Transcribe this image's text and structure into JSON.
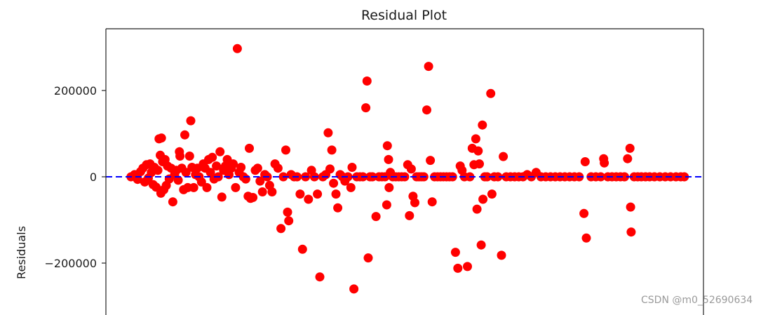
{
  "chart_data": {
    "type": "scatter",
    "title": "Residual Plot",
    "ylabel": "Residuals",
    "xlabel": "",
    "ylim": [
      -320000,
      345000
    ],
    "xlim": [
      0,
      100
    ],
    "y_ticks": [
      {
        "value": 200000,
        "label": "200000"
      },
      {
        "value": 0,
        "label": "0"
      },
      {
        "value": -200000,
        "label": "−200000"
      }
    ],
    "reference_line": {
      "y": 0,
      "style": "dashed",
      "color": "#0000ff"
    },
    "marker_color": "#ff0000",
    "grid": false,
    "points": [
      {
        "x": 4.2,
        "y": 0
      },
      {
        "x": 4.8,
        "y": 5000
      },
      {
        "x": 5.3,
        "y": -6000
      },
      {
        "x": 5.8,
        "y": 12000
      },
      {
        "x": 6.2,
        "y": 20000
      },
      {
        "x": 6.5,
        "y": -12000
      },
      {
        "x": 6.8,
        "y": 28000
      },
      {
        "x": 7.1,
        "y": -3000
      },
      {
        "x": 7.4,
        "y": 30000
      },
      {
        "x": 7.6,
        "y": 10000
      },
      {
        "x": 7.9,
        "y": -18000
      },
      {
        "x": 8.1,
        "y": 22000
      },
      {
        "x": 8.4,
        "y": -24000
      },
      {
        "x": 8.7,
        "y": 15000
      },
      {
        "x": 8.9,
        "y": 88000
      },
      {
        "x": 9.1,
        "y": 50000
      },
      {
        "x": 9.2,
        "y": -38000
      },
      {
        "x": 9.3,
        "y": 90000
      },
      {
        "x": 9.5,
        "y": 35000
      },
      {
        "x": 9.7,
        "y": -30000
      },
      {
        "x": 9.9,
        "y": 40000
      },
      {
        "x": 10.1,
        "y": -20000
      },
      {
        "x": 10.3,
        "y": 25000
      },
      {
        "x": 10.6,
        "y": -5000
      },
      {
        "x": 10.9,
        "y": 20000
      },
      {
        "x": 11.2,
        "y": -58000
      },
      {
        "x": 11.5,
        "y": 5000
      },
      {
        "x": 11.8,
        "y": 15000
      },
      {
        "x": 12.1,
        "y": -8000
      },
      {
        "x": 12.3,
        "y": 58000
      },
      {
        "x": 12.4,
        "y": 48000
      },
      {
        "x": 12.7,
        "y": 20000
      },
      {
        "x": 13.0,
        "y": -30000
      },
      {
        "x": 13.2,
        "y": 97000
      },
      {
        "x": 13.4,
        "y": 10000
      },
      {
        "x": 13.7,
        "y": -25000
      },
      {
        "x": 14.0,
        "y": 48000
      },
      {
        "x": 14.2,
        "y": 130000
      },
      {
        "x": 14.4,
        "y": 22000
      },
      {
        "x": 14.7,
        "y": -25000
      },
      {
        "x": 15.0,
        "y": 5000
      },
      {
        "x": 15.3,
        "y": 20000
      },
      {
        "x": 15.6,
        "y": 0
      },
      {
        "x": 16.0,
        "y": -12000
      },
      {
        "x": 16.3,
        "y": 30000
      },
      {
        "x": 16.6,
        "y": 20000
      },
      {
        "x": 16.9,
        "y": -25000
      },
      {
        "x": 17.2,
        "y": 40000
      },
      {
        "x": 17.5,
        "y": 10000
      },
      {
        "x": 17.8,
        "y": 45000
      },
      {
        "x": 18.1,
        "y": -5000
      },
      {
        "x": 18.5,
        "y": 25000
      },
      {
        "x": 18.8,
        "y": 0
      },
      {
        "x": 19.1,
        "y": 58000
      },
      {
        "x": 19.4,
        "y": -47000
      },
      {
        "x": 19.7,
        "y": 15000
      },
      {
        "x": 20.0,
        "y": 25000
      },
      {
        "x": 20.3,
        "y": 40000
      },
      {
        "x": 20.6,
        "y": 5000
      },
      {
        "x": 21.0,
        "y": 20000
      },
      {
        "x": 21.3,
        "y": 30000
      },
      {
        "x": 21.7,
        "y": -25000
      },
      {
        "x": 22.0,
        "y": 297000
      },
      {
        "x": 22.3,
        "y": 10000
      },
      {
        "x": 22.6,
        "y": 22000
      },
      {
        "x": 23.0,
        "y": 0
      },
      {
        "x": 23.4,
        "y": -5000
      },
      {
        "x": 23.8,
        "y": -45000
      },
      {
        "x": 24.0,
        "y": 66000
      },
      {
        "x": 24.2,
        "y": -50000
      },
      {
        "x": 24.6,
        "y": -48000
      },
      {
        "x": 25.0,
        "y": 15000
      },
      {
        "x": 25.4,
        "y": 20000
      },
      {
        "x": 25.8,
        "y": -10000
      },
      {
        "x": 26.2,
        "y": -35000
      },
      {
        "x": 26.6,
        "y": 5000
      },
      {
        "x": 27.0,
        "y": 0
      },
      {
        "x": 27.4,
        "y": -20000
      },
      {
        "x": 27.8,
        "y": -35000
      },
      {
        "x": 28.3,
        "y": 30000
      },
      {
        "x": 28.8,
        "y": 20000
      },
      {
        "x": 29.3,
        "y": -120000
      },
      {
        "x": 29.7,
        "y": 0
      },
      {
        "x": 30.1,
        "y": 62000
      },
      {
        "x": 30.4,
        "y": -82000
      },
      {
        "x": 30.6,
        "y": -102000
      },
      {
        "x": 31.0,
        "y": 5000
      },
      {
        "x": 31.5,
        "y": 0
      },
      {
        "x": 32.0,
        "y": 0
      },
      {
        "x": 32.5,
        "y": -40000
      },
      {
        "x": 32.9,
        "y": -168000
      },
      {
        "x": 33.4,
        "y": 0
      },
      {
        "x": 33.9,
        "y": -52000
      },
      {
        "x": 34.4,
        "y": 15000
      },
      {
        "x": 34.9,
        "y": 0
      },
      {
        "x": 35.4,
        "y": -40000
      },
      {
        "x": 35.8,
        "y": -232000
      },
      {
        "x": 36.3,
        "y": 0
      },
      {
        "x": 36.8,
        "y": 5000
      },
      {
        "x": 37.2,
        "y": 102000
      },
      {
        "x": 37.5,
        "y": 18000
      },
      {
        "x": 37.8,
        "y": 62000
      },
      {
        "x": 38.1,
        "y": -15000
      },
      {
        "x": 38.5,
        "y": -40000
      },
      {
        "x": 38.8,
        "y": -72000
      },
      {
        "x": 39.2,
        "y": 5000
      },
      {
        "x": 39.6,
        "y": 0
      },
      {
        "x": 40.0,
        "y": -10000
      },
      {
        "x": 40.5,
        "y": 0
      },
      {
        "x": 41.0,
        "y": -25000
      },
      {
        "x": 41.2,
        "y": 22000
      },
      {
        "x": 41.5,
        "y": -260000
      },
      {
        "x": 42.0,
        "y": 0
      },
      {
        "x": 42.5,
        "y": 0
      },
      {
        "x": 43.0,
        "y": 0
      },
      {
        "x": 43.5,
        "y": 160000
      },
      {
        "x": 43.7,
        "y": 222000
      },
      {
        "x": 43.9,
        "y": -188000
      },
      {
        "x": 44.2,
        "y": 0
      },
      {
        "x": 44.6,
        "y": 0
      },
      {
        "x": 45.2,
        "y": -92000
      },
      {
        "x": 45.7,
        "y": 0
      },
      {
        "x": 46.2,
        "y": 0
      },
      {
        "x": 46.7,
        "y": 0
      },
      {
        "x": 47.0,
        "y": -65000
      },
      {
        "x": 47.1,
        "y": 72000
      },
      {
        "x": 47.3,
        "y": 40000
      },
      {
        "x": 47.4,
        "y": -25000
      },
      {
        "x": 47.6,
        "y": 10000
      },
      {
        "x": 48.0,
        "y": 0
      },
      {
        "x": 48.5,
        "y": 0
      },
      {
        "x": 49.0,
        "y": 0
      },
      {
        "x": 49.5,
        "y": 0
      },
      {
        "x": 50.0,
        "y": 0
      },
      {
        "x": 50.5,
        "y": 28000
      },
      {
        "x": 50.8,
        "y": -90000
      },
      {
        "x": 51.1,
        "y": 18000
      },
      {
        "x": 51.4,
        "y": -45000
      },
      {
        "x": 51.7,
        "y": -60000
      },
      {
        "x": 52.0,
        "y": 0
      },
      {
        "x": 52.4,
        "y": 0
      },
      {
        "x": 52.8,
        "y": 0
      },
      {
        "x": 53.2,
        "y": 0
      },
      {
        "x": 53.7,
        "y": 155000
      },
      {
        "x": 54.0,
        "y": 256000
      },
      {
        "x": 54.3,
        "y": 38000
      },
      {
        "x": 54.6,
        "y": -58000
      },
      {
        "x": 55.0,
        "y": 0
      },
      {
        "x": 55.5,
        "y": 0
      },
      {
        "x": 56.0,
        "y": 0
      },
      {
        "x": 56.5,
        "y": 0
      },
      {
        "x": 57.0,
        "y": 0
      },
      {
        "x": 57.5,
        "y": 0
      },
      {
        "x": 58.0,
        "y": 0
      },
      {
        "x": 58.5,
        "y": -175000
      },
      {
        "x": 58.9,
        "y": -212000
      },
      {
        "x": 59.3,
        "y": 25000
      },
      {
        "x": 59.6,
        "y": 15000
      },
      {
        "x": 60.0,
        "y": 0
      },
      {
        "x": 60.5,
        "y": -208000
      },
      {
        "x": 60.9,
        "y": 0
      },
      {
        "x": 61.3,
        "y": 66000
      },
      {
        "x": 61.6,
        "y": 28000
      },
      {
        "x": 61.9,
        "y": 88000
      },
      {
        "x": 62.1,
        "y": -75000
      },
      {
        "x": 62.3,
        "y": 60000
      },
      {
        "x": 62.5,
        "y": 30000
      },
      {
        "x": 62.8,
        "y": -158000
      },
      {
        "x": 63.0,
        "y": 120000
      },
      {
        "x": 63.1,
        "y": -52000
      },
      {
        "x": 63.4,
        "y": 0
      },
      {
        "x": 63.8,
        "y": 0
      },
      {
        "x": 64.4,
        "y": 193000
      },
      {
        "x": 64.6,
        "y": -40000
      },
      {
        "x": 65.0,
        "y": 0
      },
      {
        "x": 65.6,
        "y": 0
      },
      {
        "x": 66.2,
        "y": -182000
      },
      {
        "x": 66.5,
        "y": 47000
      },
      {
        "x": 67.0,
        "y": 0
      },
      {
        "x": 67.7,
        "y": 0
      },
      {
        "x": 68.4,
        "y": 0
      },
      {
        "x": 69.1,
        "y": 0
      },
      {
        "x": 69.8,
        "y": 0
      },
      {
        "x": 70.5,
        "y": 5000
      },
      {
        "x": 71.2,
        "y": 0
      },
      {
        "x": 72.0,
        "y": 10000
      },
      {
        "x": 72.8,
        "y": 0
      },
      {
        "x": 73.6,
        "y": 0
      },
      {
        "x": 74.4,
        "y": 0
      },
      {
        "x": 75.2,
        "y": 0
      },
      {
        "x": 76.0,
        "y": 0
      },
      {
        "x": 76.8,
        "y": 0
      },
      {
        "x": 77.6,
        "y": 0
      },
      {
        "x": 78.4,
        "y": 0
      },
      {
        "x": 79.2,
        "y": 0
      },
      {
        "x": 80.0,
        "y": -85000
      },
      {
        "x": 80.2,
        "y": 35000
      },
      {
        "x": 80.4,
        "y": -142000
      },
      {
        "x": 81.2,
        "y": 0
      },
      {
        "x": 82.0,
        "y": 0
      },
      {
        "x": 82.8,
        "y": 0
      },
      {
        "x": 83.3,
        "y": 42000
      },
      {
        "x": 83.4,
        "y": 32000
      },
      {
        "x": 84.0,
        "y": 0
      },
      {
        "x": 84.7,
        "y": 0
      },
      {
        "x": 85.4,
        "y": 0
      },
      {
        "x": 86.1,
        "y": 0
      },
      {
        "x": 86.8,
        "y": 0
      },
      {
        "x": 87.3,
        "y": 42000
      },
      {
        "x": 87.7,
        "y": 66000
      },
      {
        "x": 87.8,
        "y": -70000
      },
      {
        "x": 87.9,
        "y": -128000
      },
      {
        "x": 88.4,
        "y": 0
      },
      {
        "x": 89.0,
        "y": 0
      },
      {
        "x": 89.6,
        "y": 0
      },
      {
        "x": 90.3,
        "y": 0
      },
      {
        "x": 91.0,
        "y": 0
      },
      {
        "x": 91.8,
        "y": 0
      },
      {
        "x": 92.7,
        "y": 0
      },
      {
        "x": 93.6,
        "y": 0
      },
      {
        "x": 94.5,
        "y": 0
      },
      {
        "x": 95.4,
        "y": 0
      },
      {
        "x": 96.2,
        "y": 0
      },
      {
        "x": 96.8,
        "y": 0
      }
    ]
  },
  "watermark": "CSDN @m0_52690634"
}
